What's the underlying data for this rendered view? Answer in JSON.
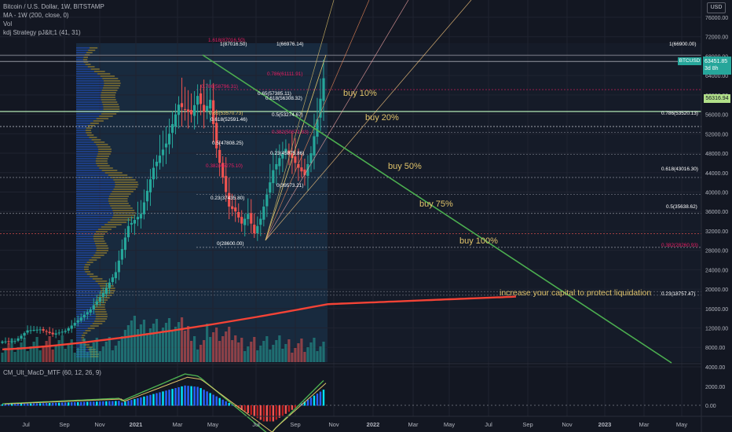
{
  "header": {
    "symbol_line": "Bitcoin / U.S. Dollar, 1W, BITSTAMP",
    "ma_line": "MA - 1W (200, close, 0)",
    "vol_line": "Vol",
    "strategy_line": "kdj Strategy pJ&lt;1 (41, 31)"
  },
  "macd_legend": "CM_Ult_MacD_MTF (60, 12, 26, 9)",
  "currency_label": "USD",
  "current_price": {
    "symbol": "BTCUSD",
    "price": "63451.85",
    "countdown": "3d 8h"
  },
  "hline_label": "56316.94",
  "colors": {
    "background": "#131722",
    "bull": "#26a69a",
    "bear": "#ef5350",
    "trendline": "#4caf50",
    "ma": "#f44336",
    "annotation": "#e0c36a",
    "fib_label": "#ffffff",
    "fib_pink": "#e91e63"
  },
  "price_axis": {
    "labels": [
      "76000.00",
      "72000.00",
      "68000.00",
      "64000.00",
      "60000.00",
      "56000.00",
      "52000.00",
      "48000.00",
      "44000.00",
      "40000.00",
      "36000.00",
      "32000.00",
      "28000.00",
      "24000.00",
      "20000.00",
      "16000.00",
      "12000.00",
      "8000.00",
      "4000.00"
    ]
  },
  "macd_axis": {
    "labels": [
      "2000.00",
      "0.00"
    ]
  },
  "time_axis": {
    "labels": [
      "Jul",
      "Sep",
      "Nov",
      "2021",
      "Mar",
      "May",
      "Jul",
      "Sep",
      "Nov",
      "2022",
      "Mar",
      "May",
      "Jul",
      "Sep",
      "Nov",
      "2023",
      "Mar",
      "May"
    ]
  },
  "annotations": [
    "buy 10%",
    "buy 20%",
    "buy 50%",
    "buy 75%",
    "buy 100%",
    "increase your capital to protect liquidation"
  ],
  "fib_labels": [
    "1.618(87016.50)",
    "1(87016.50)",
    "1(66976.14)",
    "1(66900.00)",
    "0.786(61111.91)",
    "0.786(58796.31)",
    "0.65(57385.11)",
    "0.618(56308.32)",
    "0.5(53274.67)",
    "0.65(53570.73)",
    "0.618(52591.46)",
    "0.786(53520.13)",
    "0.382(50671.83)",
    "0.5(47808.25)",
    "0.23(45875.86)",
    "0.382(45275.10)",
    "0.618(43016.30)",
    "0(39573.21)",
    "0.23(37435.80)",
    "0.5(35638.62)",
    "0(28600.00)",
    "0.382(28260.93)",
    "0.23(18757.47)"
  ],
  "chart_data": {
    "type": "candlestick",
    "title": "Bitcoin / U.S. Dollar, 1W, BITSTAMP",
    "ylim": [
      3000,
      77000
    ],
    "x": [
      "Jun 2020",
      "Jul 2020",
      "Aug 2020",
      "Sep 2020",
      "Oct 2020",
      "Nov 2020",
      "Dec 2020",
      "Jan 2021",
      "Feb 2021",
      "Mar 2021",
      "Apr 2021",
      "May 2021",
      "Jun 2021",
      "Jul 2021",
      "Aug 2021",
      "Sep 2021",
      "Oct 2021"
    ],
    "close_approx": [
      9200,
      11300,
      11700,
      10800,
      13800,
      19600,
      29000,
      33100,
      45200,
      58900,
      57700,
      37300,
      35000,
      41500,
      47100,
      43800,
      63450
    ],
    "ma200_approx": [
      7800,
      8000,
      8200,
      8500,
      8900,
      9400,
      10100,
      11000,
      12100,
      13000,
      14000,
      14800,
      15300,
      15700,
      16200,
      16500,
      17000
    ],
    "series": [
      {
        "name": "Vol",
        "type": "bar"
      },
      {
        "name": "MA - 1W (200, close, 0)",
        "type": "line"
      },
      {
        "name": "CM_Ult_MacD_MTF (60, 12, 26, 9)",
        "type": "histogram",
        "ylim": [
          -1500,
          4500
        ]
      }
    ],
    "grid": true,
    "legend_position": "top-left"
  }
}
